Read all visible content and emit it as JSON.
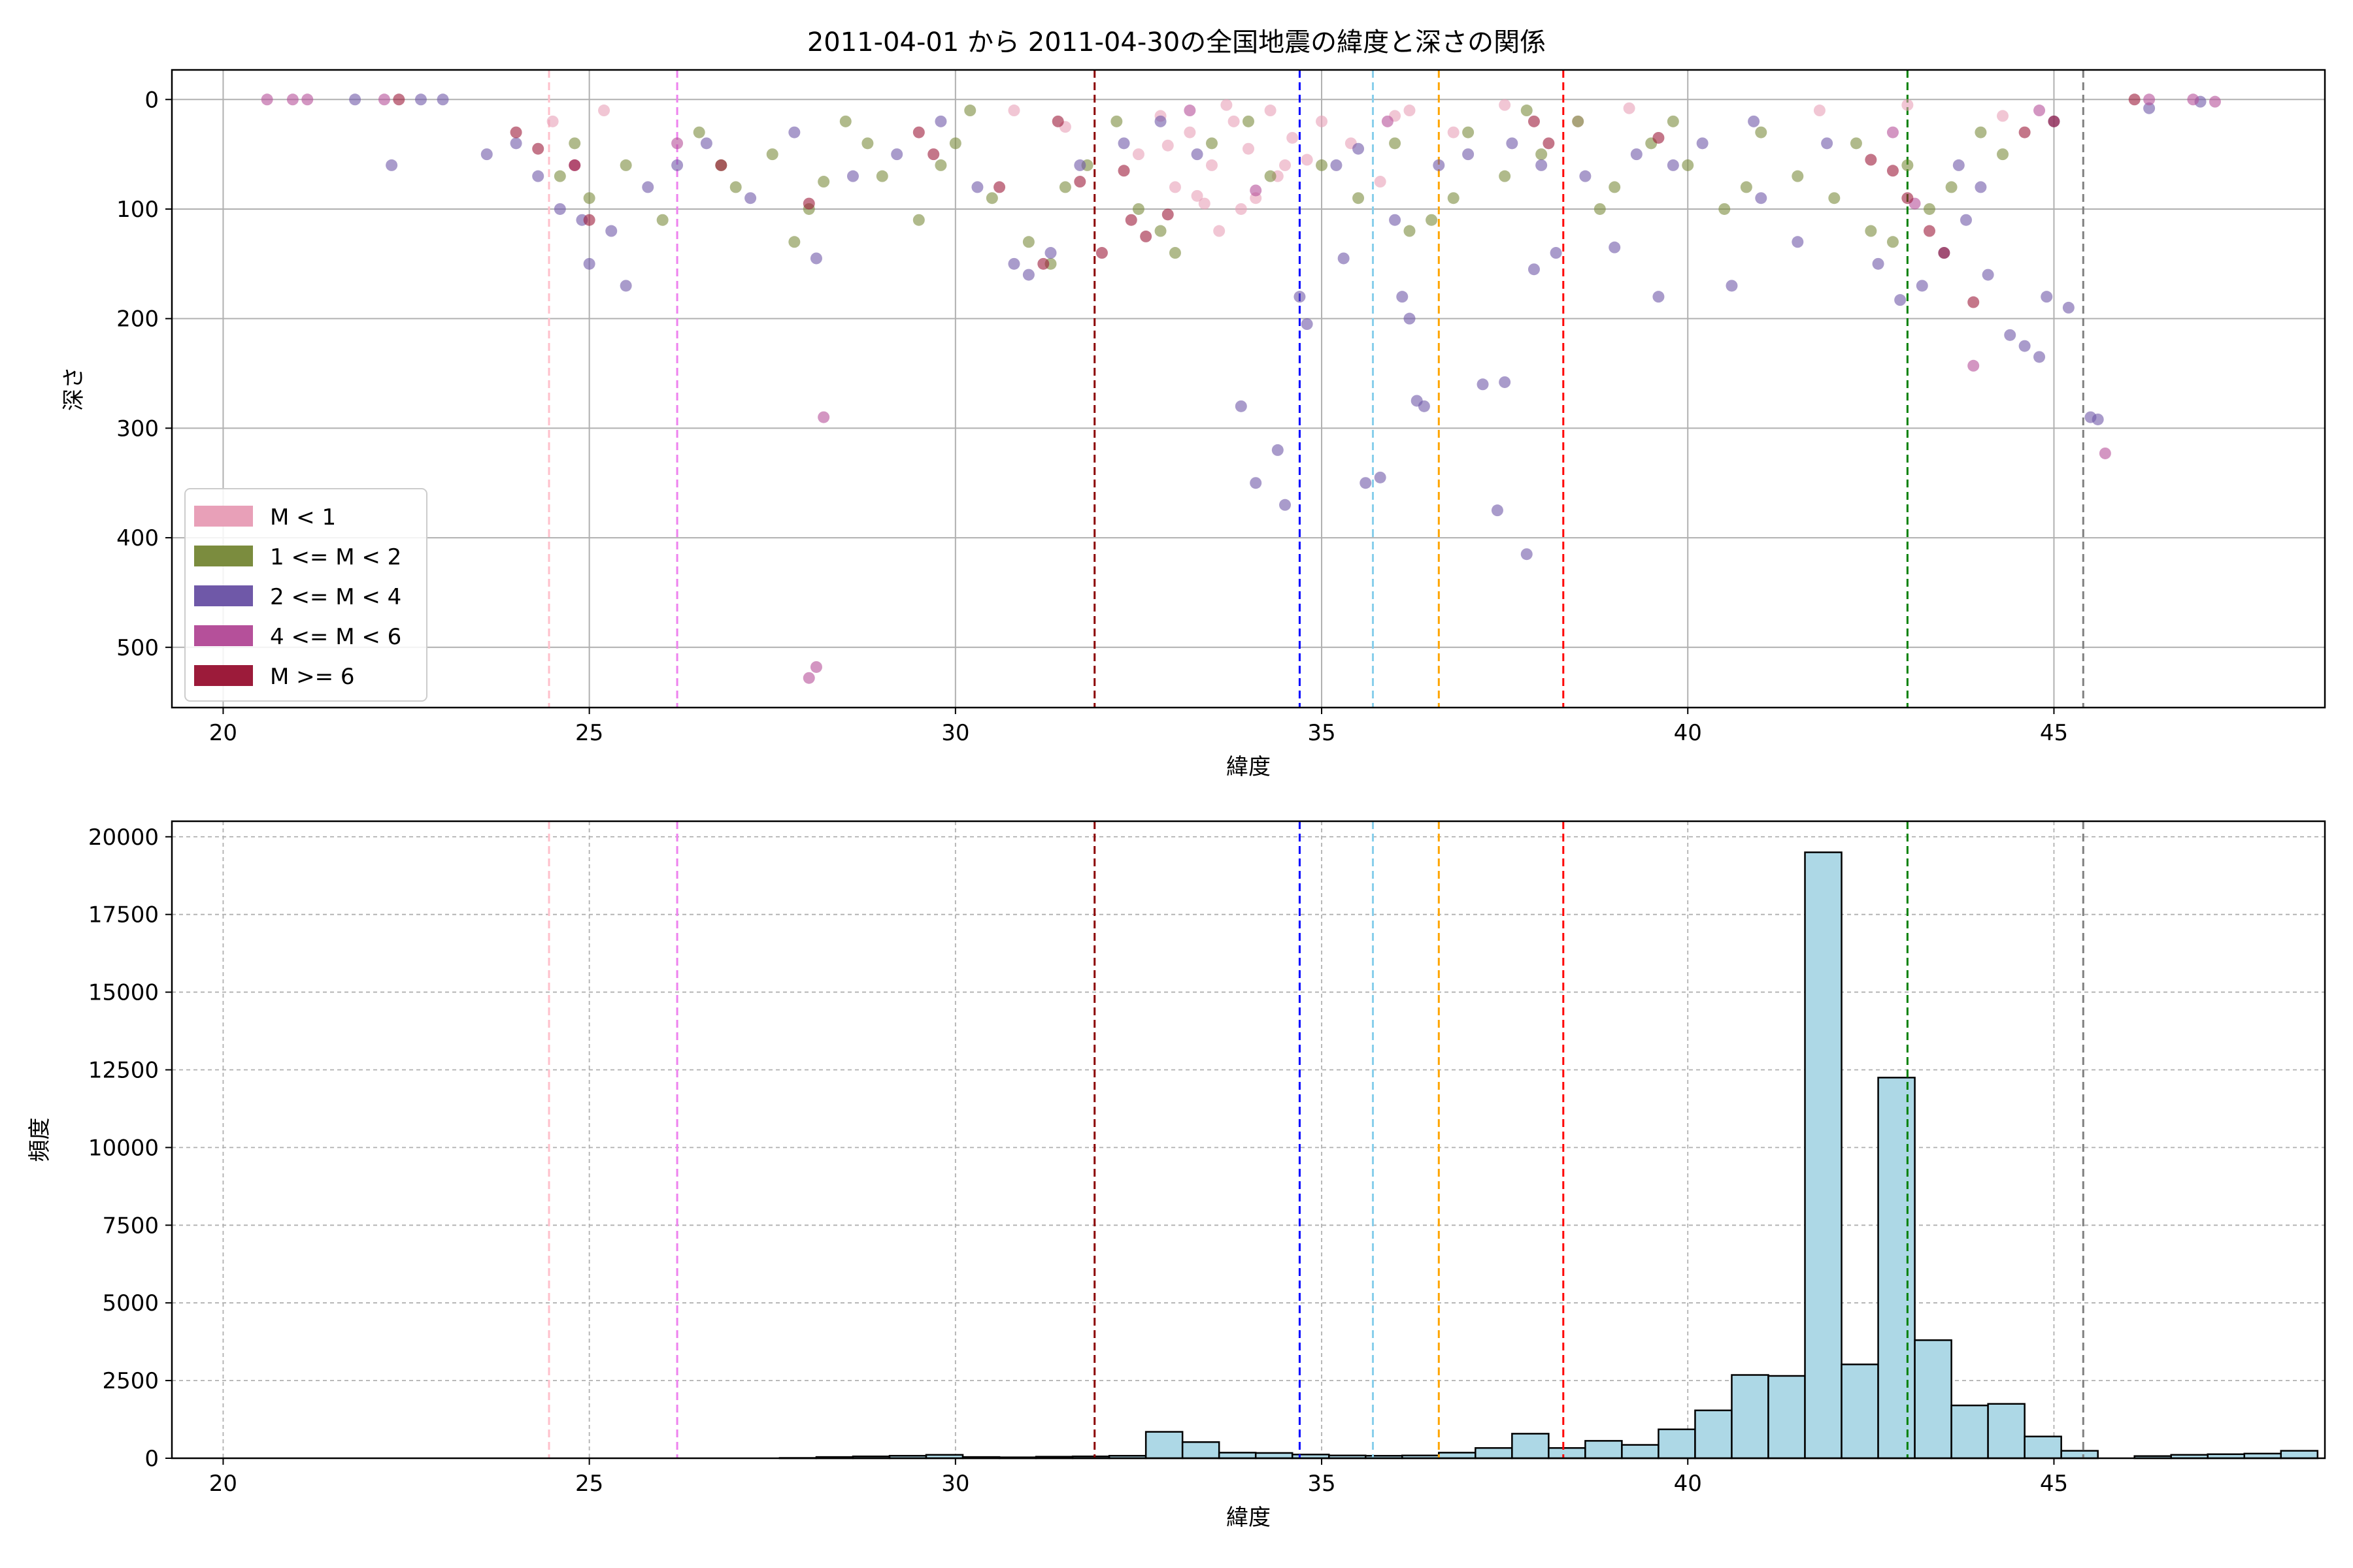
{
  "figure": {
    "title": "2011-04-01 から 2011-04-30の全国地震の緯度と深さの関係"
  },
  "chart_data": [
    {
      "type": "scatter",
      "title": "2011-04-01 から 2011-04-30の全国地震の緯度と深さの関係",
      "xlabel": "緯度",
      "ylabel": "深さ",
      "xlim": [
        19.3,
        48.7
      ],
      "ylim": [
        555,
        -27
      ],
      "y_inverted": true,
      "grid": true,
      "legend_placement": "lower-left",
      "xticks": [
        20,
        25,
        30,
        35,
        40,
        45
      ],
      "yticks": [
        0,
        100,
        200,
        300,
        400,
        500
      ],
      "reference_lines": [
        {
          "x": 24.45,
          "color": "#ffc0cb"
        },
        {
          "x": 26.2,
          "color": "#ee82ee"
        },
        {
          "x": 31.9,
          "color": "#8b0000"
        },
        {
          "x": 34.7,
          "color": "#0000ff"
        },
        {
          "x": 35.7,
          "color": "#87ceeb"
        },
        {
          "x": 36.6,
          "color": "#ffa500"
        },
        {
          "x": 38.3,
          "color": "#ff0000"
        },
        {
          "x": 43.0,
          "color": "#008000"
        },
        {
          "x": 45.4,
          "color": "#808080"
        }
      ],
      "series": [
        {
          "name": "M < 1",
          "color": "#e8a0b8",
          "points": [
            [
              33.2,
              30
            ],
            [
              33.5,
              60
            ],
            [
              33.8,
              20
            ],
            [
              34.0,
              45
            ],
            [
              34.3,
              10
            ],
            [
              34.6,
              35
            ],
            [
              33.0,
              80
            ],
            [
              33.4,
              95
            ],
            [
              32.8,
              15
            ],
            [
              34.1,
              90
            ],
            [
              33.7,
              5
            ],
            [
              34.4,
              70
            ],
            [
              35.0,
              20
            ],
            [
              35.4,
              40
            ],
            [
              36.2,
              10
            ],
            [
              36.8,
              30
            ],
            [
              32.5,
              50
            ],
            [
              33.9,
              100
            ],
            [
              34.8,
              55
            ],
            [
              31.5,
              25
            ],
            [
              30.8,
              10
            ],
            [
              43.0,
              5
            ],
            [
              44.3,
              15
            ],
            [
              41.8,
              10
            ],
            [
              38.5,
              20
            ],
            [
              37.5,
              5
            ],
            [
              24.5,
              20
            ],
            [
              25.2,
              10
            ],
            [
              33.6,
              120
            ],
            [
              34.5,
              60
            ],
            [
              36.0,
              15
            ],
            [
              35.8,
              75
            ],
            [
              39.2,
              8
            ],
            [
              33.3,
              88
            ],
            [
              32.9,
              42
            ]
          ]
        },
        {
          "name": "1 <= M < 2",
          "color": "#7b8c3e",
          "points": [
            [
              24.8,
              40
            ],
            [
              25.5,
              60
            ],
            [
              26.5,
              30
            ],
            [
              27.0,
              80
            ],
            [
              27.5,
              50
            ],
            [
              28.0,
              100
            ],
            [
              28.5,
              20
            ],
            [
              29.0,
              70
            ],
            [
              29.5,
              110
            ],
            [
              30.0,
              40
            ],
            [
              30.5,
              90
            ],
            [
              31.0,
              130
            ],
            [
              31.3,
              150
            ],
            [
              31.8,
              60
            ],
            [
              32.2,
              20
            ],
            [
              32.5,
              100
            ],
            [
              33.0,
              140
            ],
            [
              33.5,
              40
            ],
            [
              34.0,
              20
            ],
            [
              35.0,
              60
            ],
            [
              35.5,
              90
            ],
            [
              36.0,
              40
            ],
            [
              36.5,
              110
            ],
            [
              37.0,
              30
            ],
            [
              37.5,
              70
            ],
            [
              38.0,
              50
            ],
            [
              38.5,
              20
            ],
            [
              39.0,
              80
            ],
            [
              39.5,
              40
            ],
            [
              40.0,
              60
            ],
            [
              40.5,
              100
            ],
            [
              41.0,
              30
            ],
            [
              41.5,
              70
            ],
            [
              42.0,
              90
            ],
            [
              42.5,
              120
            ],
            [
              43.0,
              60
            ],
            [
              43.3,
              100
            ],
            [
              43.6,
              80
            ],
            [
              44.0,
              30
            ],
            [
              44.3,
              50
            ],
            [
              26.0,
              110
            ],
            [
              26.8,
              60
            ],
            [
              27.8,
              130
            ],
            [
              28.8,
              40
            ],
            [
              29.8,
              60
            ],
            [
              30.2,
              10
            ],
            [
              31.5,
              80
            ],
            [
              32.8,
              120
            ],
            [
              34.3,
              70
            ],
            [
              36.2,
              120
            ],
            [
              36.8,
              90
            ],
            [
              37.8,
              10
            ],
            [
              38.8,
              100
            ],
            [
              39.8,
              20
            ],
            [
              40.8,
              80
            ],
            [
              42.3,
              40
            ],
            [
              42.8,
              130
            ],
            [
              25.0,
              90
            ],
            [
              24.6,
              70
            ],
            [
              28.2,
              75
            ]
          ]
        },
        {
          "name": "2 <= M < 4",
          "color": "#6f58a8",
          "points": [
            [
              22.3,
              60
            ],
            [
              23.6,
              50
            ],
            [
              24.0,
              40
            ],
            [
              24.3,
              70
            ],
            [
              24.6,
              100
            ],
            [
              24.9,
              110
            ],
            [
              25.0,
              150
            ],
            [
              25.3,
              120
            ],
            [
              25.5,
              170
            ],
            [
              25.8,
              80
            ],
            [
              26.2,
              60
            ],
            [
              26.6,
              40
            ],
            [
              27.2,
              90
            ],
            [
              27.8,
              30
            ],
            [
              28.1,
              145
            ],
            [
              28.6,
              70
            ],
            [
              29.2,
              50
            ],
            [
              29.8,
              20
            ],
            [
              30.3,
              80
            ],
            [
              30.8,
              150
            ],
            [
              31.0,
              160
            ],
            [
              31.3,
              140
            ],
            [
              31.7,
              60
            ],
            [
              32.3,
              40
            ],
            [
              32.8,
              20
            ],
            [
              33.3,
              50
            ],
            [
              33.9,
              280
            ],
            [
              34.1,
              350
            ],
            [
              34.4,
              320
            ],
            [
              34.5,
              370
            ],
            [
              34.7,
              180
            ],
            [
              34.8,
              205
            ],
            [
              35.2,
              60
            ],
            [
              35.3,
              145
            ],
            [
              35.6,
              350
            ],
            [
              35.8,
              345
            ],
            [
              36.0,
              110
            ],
            [
              36.1,
              180
            ],
            [
              36.2,
              200
            ],
            [
              36.3,
              275
            ],
            [
              36.4,
              280
            ],
            [
              37.2,
              260
            ],
            [
              37.4,
              375
            ],
            [
              37.5,
              258
            ],
            [
              37.8,
              415
            ],
            [
              37.9,
              155
            ],
            [
              38.2,
              140
            ],
            [
              39.0,
              135
            ],
            [
              39.6,
              180
            ],
            [
              40.6,
              170
            ],
            [
              41.0,
              90
            ],
            [
              41.5,
              130
            ],
            [
              41.9,
              40
            ],
            [
              42.6,
              150
            ],
            [
              42.9,
              183
            ],
            [
              43.2,
              170
            ],
            [
              43.5,
              140
            ],
            [
              43.8,
              110
            ],
            [
              44.1,
              160
            ],
            [
              44.4,
              215
            ],
            [
              44.6,
              225
            ],
            [
              44.8,
              235
            ],
            [
              44.9,
              180
            ],
            [
              45.2,
              190
            ],
            [
              45.5,
              290
            ],
            [
              45.6,
              292
            ],
            [
              36.6,
              60
            ],
            [
              37.0,
              50
            ],
            [
              37.6,
              40
            ],
            [
              38.0,
              60
            ],
            [
              38.6,
              70
            ],
            [
              39.3,
              50
            ],
            [
              40.2,
              40
            ],
            [
              35.5,
              45
            ],
            [
              21.8,
              0
            ],
            [
              23.0,
              0
            ],
            [
              22.7,
              0
            ],
            [
              47.0,
              2
            ],
            [
              46.3,
              8
            ],
            [
              45.0,
              20
            ],
            [
              44.0,
              80
            ],
            [
              43.7,
              60
            ],
            [
              40.9,
              20
            ],
            [
              39.8,
              60
            ]
          ]
        },
        {
          "name": "4 <= M < 6",
          "color": "#b5509a",
          "points": [
            [
              20.6,
              0
            ],
            [
              20.95,
              0
            ],
            [
              21.15,
              0
            ],
            [
              22.2,
              0
            ],
            [
              28.0,
              528
            ],
            [
              28.1,
              518
            ],
            [
              28.2,
              290
            ],
            [
              34.1,
              83
            ],
            [
              43.9,
              243
            ],
            [
              45.7,
              323
            ],
            [
              46.3,
              0
            ],
            [
              46.9,
              0
            ],
            [
              47.2,
              2
            ],
            [
              24.8,
              60
            ],
            [
              26.2,
              40
            ],
            [
              42.8,
              30
            ],
            [
              43.1,
              95
            ],
            [
              35.9,
              20
            ],
            [
              33.2,
              10
            ],
            [
              44.8,
              10
            ]
          ]
        },
        {
          "name": "M >= 6",
          "color": "#9c1b3a",
          "points": [
            [
              22.4,
              0
            ],
            [
              24.0,
              30
            ],
            [
              24.3,
              45
            ],
            [
              24.8,
              60
            ],
            [
              25.0,
              110
            ],
            [
              26.8,
              60
            ],
            [
              28.0,
              95
            ],
            [
              29.5,
              30
            ],
            [
              29.7,
              50
            ],
            [
              30.6,
              80
            ],
            [
              31.2,
              150
            ],
            [
              31.7,
              75
            ],
            [
              32.0,
              140
            ],
            [
              32.3,
              65
            ],
            [
              32.4,
              110
            ],
            [
              32.6,
              125
            ],
            [
              32.9,
              105
            ],
            [
              42.5,
              55
            ],
            [
              42.8,
              65
            ],
            [
              43.0,
              90
            ],
            [
              43.3,
              120
            ],
            [
              43.5,
              140
            ],
            [
              43.9,
              185
            ],
            [
              44.6,
              30
            ],
            [
              45.0,
              20
            ],
            [
              46.1,
              0
            ],
            [
              38.1,
              40
            ],
            [
              37.9,
              20
            ],
            [
              39.6,
              35
            ],
            [
              31.4,
              20
            ]
          ]
        }
      ]
    },
    {
      "type": "bar",
      "xlabel": "緯度",
      "ylabel": "頻度",
      "xlim": [
        19.3,
        48.7
      ],
      "ylim": [
        0,
        20500
      ],
      "grid": true,
      "grid_style": "dashed",
      "bar_color": "#add8e6",
      "xticks": [
        20,
        25,
        30,
        35,
        40,
        45
      ],
      "yticks": [
        0,
        2500,
        5000,
        7500,
        10000,
        12500,
        15000,
        17500,
        20000
      ],
      "reference_lines": [
        {
          "x": 24.45,
          "color": "#ffc0cb"
        },
        {
          "x": 26.2,
          "color": "#ee82ee"
        },
        {
          "x": 31.9,
          "color": "#8b0000"
        },
        {
          "x": 34.7,
          "color": "#0000ff"
        },
        {
          "x": 35.7,
          "color": "#87ceeb"
        },
        {
          "x": 36.6,
          "color": "#ffa500"
        },
        {
          "x": 38.3,
          "color": "#ff0000"
        },
        {
          "x": 43.0,
          "color": "#008000"
        },
        {
          "x": 45.4,
          "color": "#808080"
        }
      ],
      "bin_start": 20.6,
      "bin_width": 0.5,
      "values": [
        0,
        0,
        0,
        0,
        0,
        0,
        0,
        0,
        0,
        0,
        0,
        0,
        0,
        0,
        10,
        40,
        60,
        80,
        110,
        40,
        30,
        50,
        60,
        80,
        850,
        520,
        180,
        170,
        120,
        90,
        80,
        90,
        180,
        330,
        790,
        330,
        560,
        430,
        930,
        1540,
        2680,
        2650,
        19500,
        3020,
        12250,
        3800,
        1700,
        1750,
        700,
        240,
        0,
        70,
        110,
        130,
        150,
        240,
        60,
        30,
        20,
        0,
        0,
        0,
        0,
        0,
        0,
        0,
        0,
        0,
        0,
        0,
        0,
        0,
        0,
        0,
        0,
        0,
        0,
        0,
        0,
        0,
        0,
        0,
        0,
        0
      ]
    }
  ]
}
